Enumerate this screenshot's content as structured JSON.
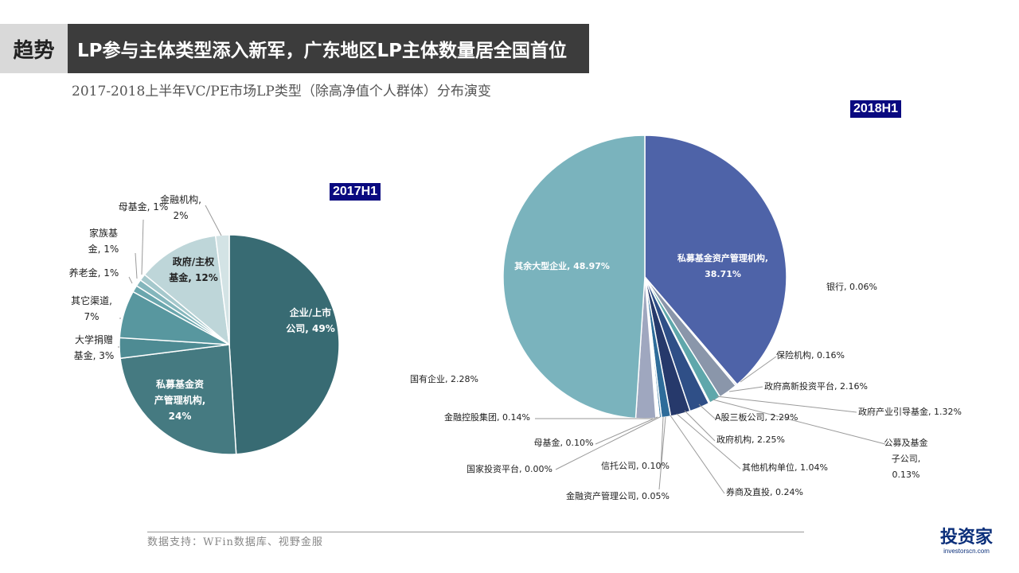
{
  "header": {
    "tag": "趋势",
    "title": "LP参与主体类型添入新军，广东地区LP主体数量居全国首位",
    "subtitle": "2017-2018上半年VC/PE市场LP类型（除高净值个人群体）分布演变"
  },
  "chart_data": [
    {
      "type": "pie",
      "title": "2017H1",
      "slices": [
        {
          "label": [
            "企业/上市",
            "公司, 49%"
          ],
          "value": 49,
          "color": "#386b73"
        },
        {
          "label": [
            "私募基金资",
            "产管理机构,",
            "24%"
          ],
          "value": 24,
          "color": "#457a81"
        },
        {
          "label": [
            "大学捐赠",
            "基金, 3%"
          ],
          "value": 3,
          "color": "#4e8b93"
        },
        {
          "label": [
            "其它渠道,",
            "7%"
          ],
          "value": 7,
          "color": "#58979f"
        },
        {
          "label": [
            "养老金, 1%"
          ],
          "value": 1,
          "color": "#6aa6ad"
        },
        {
          "label": [
            "家族基",
            "金, 1%"
          ],
          "value": 1,
          "color": "#84b6bc"
        },
        {
          "label": [
            "母基金, 1%"
          ],
          "value": 1,
          "color": "#a5c8cc"
        },
        {
          "label": [
            "政府/主权",
            "基金, 12%"
          ],
          "value": 12,
          "color": "#bed6d9"
        },
        {
          "label": [
            "金融机构,",
            "2%"
          ],
          "value": 2,
          "color": "#d3e3e5"
        }
      ]
    },
    {
      "type": "pie",
      "title": "2018H1",
      "slices": [
        {
          "label": [
            "私募基金资产管理机构,",
            "38.71%"
          ],
          "value": 38.71,
          "color": "#4e63a8"
        },
        {
          "label": [
            "银行, 0.06%"
          ],
          "value": 0.06,
          "color": "#3a4c8c"
        },
        {
          "label": [
            "保险机构, 0.16%"
          ],
          "value": 0.16,
          "color": "#5a6f95"
        },
        {
          "label": [
            "政府高新投资平台, 2.16%"
          ],
          "value": 2.16,
          "color": "#8a96aa"
        },
        {
          "label": [
            "政府产业引导基金, 1.32%"
          ],
          "value": 1.32,
          "color": "#5fa7ab"
        },
        {
          "label": [
            "公募及基金",
            "子公司,",
            "0.13%"
          ],
          "value": 0.13,
          "color": "#6a8fb0"
        },
        {
          "label": [
            "A股三板公司, 2.29%"
          ],
          "value": 2.29,
          "color": "#2f4f87"
        },
        {
          "label": [
            "政府机构, 2.25%"
          ],
          "value": 2.25,
          "color": "#26396b"
        },
        {
          "label": [
            "其他机构单位, 1.04%"
          ],
          "value": 1.04,
          "color": "#2e6c9a"
        },
        {
          "label": [
            "券商及直投, 0.24%"
          ],
          "value": 0.24,
          "color": "#3d7ea6"
        },
        {
          "label": [
            "金融资产管理公司, 0.05%"
          ],
          "value": 0.05,
          "color": "#5b86b6"
        },
        {
          "label": [
            "信托公司, 0.10%"
          ],
          "value": 0.1,
          "color": "#6fa3c4"
        },
        {
          "label": [
            "国家投资平台, 0.00%"
          ],
          "value": 0.0,
          "color": "#8fb4cc"
        },
        {
          "label": [
            "母基金, 0.10%"
          ],
          "value": 0.1,
          "color": "#a8c6d6"
        },
        {
          "label": [
            "金融控股集团, 0.14%"
          ],
          "value": 0.14,
          "color": "#b9cfd6"
        },
        {
          "label": [
            "国有企业, 2.28%"
          ],
          "value": 2.28,
          "color": "#9fa7bf"
        },
        {
          "label": [
            "其余大型企业, 48.97%"
          ],
          "value": 48.97,
          "color": "#7ab3bd"
        }
      ]
    }
  ],
  "footer": {
    "source": "数据支持：WFin数据库、视野金服"
  },
  "logo": {
    "name": "投资家",
    "url_text": "investorscn.com"
  }
}
